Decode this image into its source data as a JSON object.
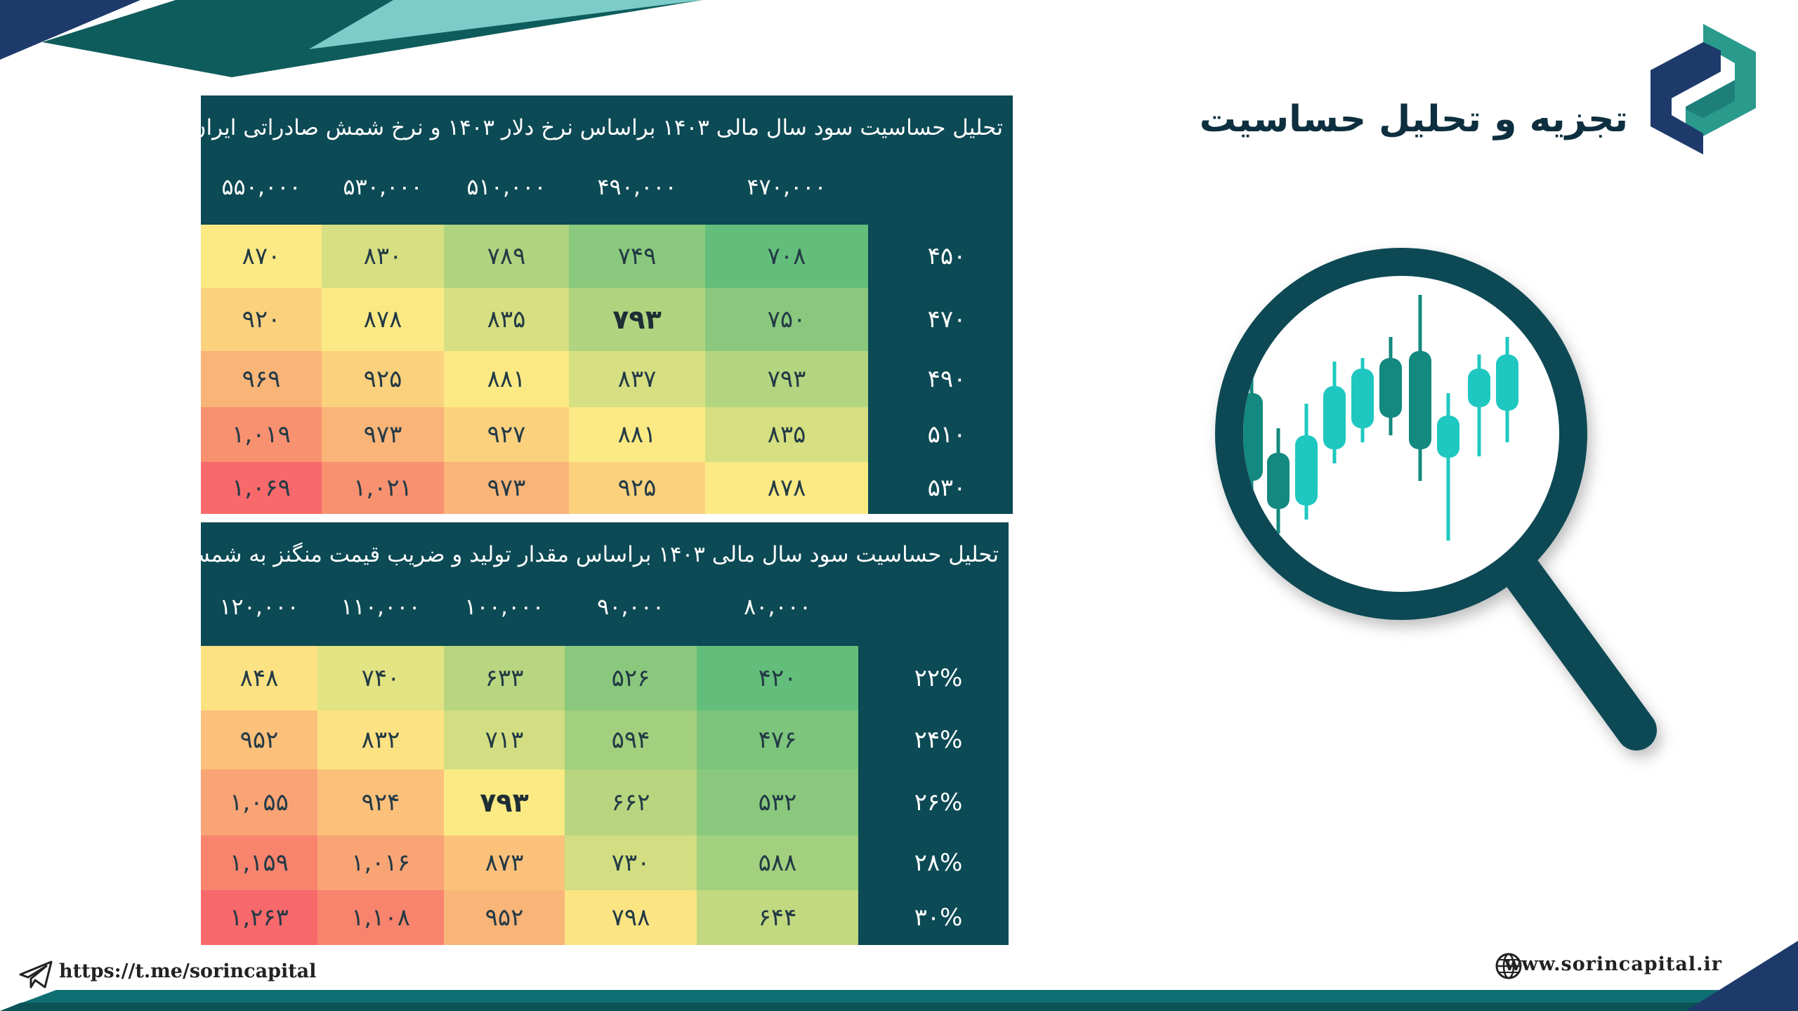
{
  "title": "تجزیه و تحلیل حساسیت",
  "table1": {
    "title": "تحلیل حساسیت سود سال مالی ۱۴۰۳ براساس نرخ دلار ۱۴۰۳ و نرخ شمش صادراتی ایران",
    "columns": [
      "۴۷۰,۰۰۰",
      "۴۹۰,۰۰۰",
      "۵۱۰,۰۰۰",
      "۵۳۰,۰۰۰",
      "۵۵۰,۰۰۰"
    ],
    "rows": [
      {
        "label": "۴۵۰",
        "values": [
          "۷۰۸",
          "۷۴۹",
          "۷۸۹",
          "۸۳۰",
          "۸۷۰"
        ]
      },
      {
        "label": "۴۷۰",
        "values": [
          "۷۵۰",
          "۷۹۳",
          "۸۳۵",
          "۸۷۸",
          "۹۲۰"
        ]
      },
      {
        "label": "۴۹۰",
        "values": [
          "۷۹۳",
          "۸۳۷",
          "۸۸۱",
          "۹۲۵",
          "۹۶۹"
        ]
      },
      {
        "label": "۵۱۰",
        "values": [
          "۸۳۵",
          "۸۸۱",
          "۹۲۷",
          "۹۷۳",
          "۱,۰۱۹"
        ]
      },
      {
        "label": "۵۳۰",
        "values": [
          "۸۷۸",
          "۹۲۵",
          "۹۷۳",
          "۱,۰۲۱",
          "۱,۰۶۹"
        ]
      }
    ],
    "highlight": {
      "row": 1,
      "col": 1
    }
  },
  "table2": {
    "title": "تحلیل حساسیت سود سال مالی ۱۴۰۳ براساس مقدار تولید و ضریب قیمت منگنز به شمش",
    "columns": [
      "۸۰,۰۰۰",
      "۹۰,۰۰۰",
      "۱۰۰,۰۰۰",
      "۱۱۰,۰۰۰",
      "۱۲۰,۰۰۰"
    ],
    "rows": [
      {
        "label": "۲۲%",
        "values": [
          "۴۲۰",
          "۵۲۶",
          "۶۳۳",
          "۷۴۰",
          "۸۴۸"
        ]
      },
      {
        "label": "۲۴%",
        "values": [
          "۴۷۶",
          "۵۹۴",
          "۷۱۳",
          "۸۳۲",
          "۹۵۲"
        ]
      },
      {
        "label": "۲۶%",
        "values": [
          "۵۳۲",
          "۶۶۲",
          "۷۹۳",
          "۹۲۴",
          "۱,۰۵۵"
        ]
      },
      {
        "label": "۲۸%",
        "values": [
          "۵۸۸",
          "۷۳۰",
          "۸۷۳",
          "۱,۰۱۶",
          "۱,۱۵۹"
        ]
      },
      {
        "label": "۳۰%",
        "values": [
          "۶۴۴",
          "۷۹۸",
          "۹۵۲",
          "۱,۱۰۸",
          "۱,۲۶۳"
        ]
      }
    ],
    "highlight": {
      "row": 2,
      "col": 2
    }
  },
  "heat_colors": [
    [
      "#63be7b",
      "#8ac97d",
      "#afd47f",
      "#d6df81",
      "#fbea84"
    ],
    [
      "#8ac97d",
      "#afd47f",
      "#d6df81",
      "#fbea84",
      "#fbd17e"
    ],
    [
      "#b3d57f",
      "#d6df81",
      "#fbea84",
      "#fbd17e",
      "#f9b478"
    ],
    [
      "#d6df81",
      "#fbea84",
      "#fbd17e",
      "#f9b478",
      "#f8916f"
    ],
    [
      "#fbea84",
      "#fbd17e",
      "#f9b478",
      "#f8916f",
      "#f8696b"
    ]
  ],
  "heat_colors2": [
    [
      "#63be7b",
      "#8ac97d",
      "#b7d67f",
      "#e2e382",
      "#fde283"
    ],
    [
      "#7dc47c",
      "#a3d07e",
      "#d2de81",
      "#fde283",
      "#fbc07a"
    ],
    [
      "#8ac97d",
      "#b7d67f",
      "#fbea84",
      "#fbc07a",
      "#f9a475"
    ],
    [
      "#a3d07e",
      "#d2de81",
      "#fbc07a",
      "#f9a475",
      "#f8846e"
    ],
    [
      "#c2d980",
      "#fbe583",
      "#f9b478",
      "#f8846e",
      "#f8696b"
    ]
  ],
  "footer": {
    "telegram": "https://t.me/sorincapital",
    "website": "www.sorincapital.ir"
  },
  "icons": {
    "telegram": "paper-plane-icon",
    "website": "globe-icon",
    "logo": "sorin-logo-icon",
    "illustration": "magnifier-candlestick-icon"
  },
  "accent": "#0c4a55"
}
